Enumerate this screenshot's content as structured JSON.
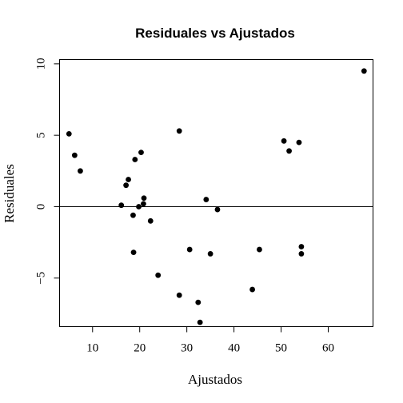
{
  "chart_data": {
    "type": "scatter",
    "title": "Residuales vs Ajustados",
    "xlabel": "Ajustados",
    "ylabel": "Residuales",
    "xlim": [
      3,
      69.5
    ],
    "ylim": [
      -8.4,
      10.3
    ],
    "xticks": [
      10,
      20,
      30,
      40,
      50,
      60
    ],
    "yticks": [
      -5,
      0,
      5,
      10
    ],
    "xtick_labels": [
      "10",
      "20",
      "30",
      "40",
      "50",
      "60"
    ],
    "ytick_labels": [
      "−5",
      "0",
      "5",
      "10"
    ],
    "reference_line": {
      "y": 0
    },
    "grid": false,
    "points": [
      {
        "x": 5.0,
        "y": 5.1
      },
      {
        "x": 6.2,
        "y": 3.6
      },
      {
        "x": 7.4,
        "y": 2.5
      },
      {
        "x": 16.1,
        "y": 0.1
      },
      {
        "x": 17.1,
        "y": 1.5
      },
      {
        "x": 17.6,
        "y": 1.9
      },
      {
        "x": 18.6,
        "y": -0.6
      },
      {
        "x": 18.7,
        "y": -3.2
      },
      {
        "x": 19.0,
        "y": 3.3
      },
      {
        "x": 19.8,
        "y": 0.0
      },
      {
        "x": 20.3,
        "y": 3.8
      },
      {
        "x": 20.8,
        "y": 0.2
      },
      {
        "x": 20.9,
        "y": 0.6
      },
      {
        "x": 22.3,
        "y": -1.0
      },
      {
        "x": 23.9,
        "y": -4.8
      },
      {
        "x": 28.4,
        "y": 5.3
      },
      {
        "x": 28.4,
        "y": -6.2
      },
      {
        "x": 30.6,
        "y": -3.0
      },
      {
        "x": 32.4,
        "y": -6.7
      },
      {
        "x": 32.8,
        "y": -8.1
      },
      {
        "x": 34.1,
        "y": 0.5
      },
      {
        "x": 35.0,
        "y": -3.3
      },
      {
        "x": 36.5,
        "y": -0.2
      },
      {
        "x": 43.9,
        "y": -5.8
      },
      {
        "x": 45.4,
        "y": -3.0
      },
      {
        "x": 50.6,
        "y": 4.6
      },
      {
        "x": 51.7,
        "y": 3.9
      },
      {
        "x": 53.8,
        "y": 4.5
      },
      {
        "x": 54.3,
        "y": -2.8
      },
      {
        "x": 54.3,
        "y": -3.3
      },
      {
        "x": 67.6,
        "y": 9.5
      }
    ]
  }
}
